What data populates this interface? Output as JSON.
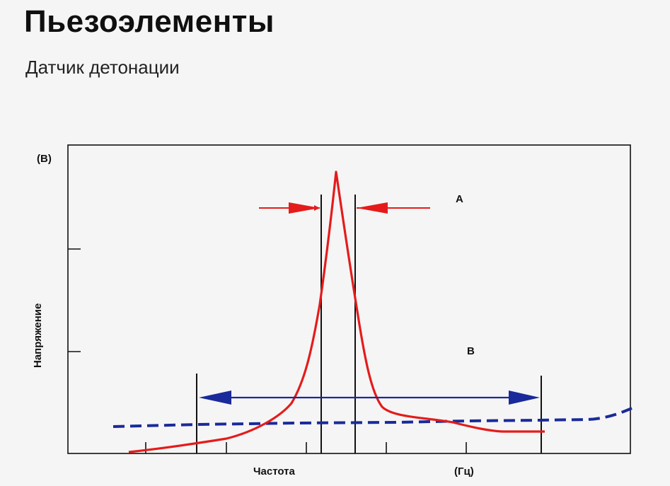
{
  "page": {
    "title": "Пьезоэлементы",
    "subtitle": "Датчик детонации"
  },
  "chart_data": {
    "type": "line",
    "ylabel": "Напряжение",
    "yunit": "(В)",
    "xlabel": "Частота",
    "xunit": "(Гц)",
    "annotations": {
      "a": "A",
      "b": "B"
    },
    "grid": false,
    "colors": {
      "resonance_curve": "#e51b1b",
      "noise_curve": "#1a2a9a",
      "frame": "#111111"
    }
  }
}
